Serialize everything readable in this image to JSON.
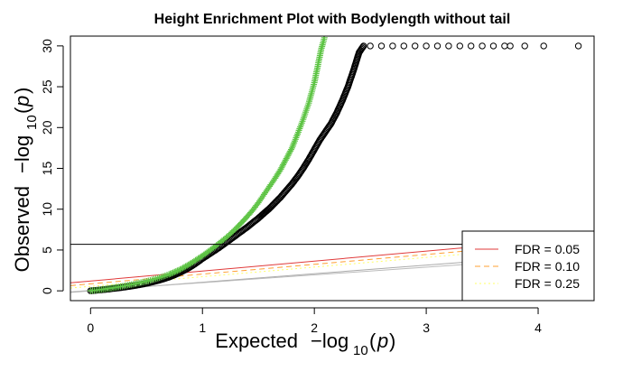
{
  "chart_data": {
    "type": "scatter",
    "title": "Height Enrichment Plot with Bodylength without tail",
    "xlabel": {
      "prefix": "Expected",
      "expr": "−log",
      "sub": "10",
      "arg": "p"
    },
    "ylabel": {
      "prefix": "Observed",
      "expr": "−log",
      "sub": "10",
      "arg": "p"
    },
    "xlim": [
      -0.18,
      4.5
    ],
    "ylim": [
      -1.2,
      31.2
    ],
    "x_ticks": [
      0,
      1,
      2,
      3,
      4
    ],
    "y_ticks": [
      0,
      5,
      10,
      15,
      20,
      25,
      30
    ],
    "x_tick_labels": [
      "0",
      "1",
      "2",
      "3",
      "4"
    ],
    "y_tick_labels": [
      "0",
      "5",
      "10",
      "15",
      "20",
      "25",
      "30"
    ],
    "threshold_line": {
      "y": 5.7,
      "color": "#000000"
    },
    "series": [
      {
        "marker": "circle",
        "color": "#000000",
        "points": [
          [
            0,
            0
          ],
          [
            0.05,
            0.06
          ],
          [
            0.1,
            0.13
          ],
          [
            0.15,
            0.2
          ],
          [
            0.2,
            0.28
          ],
          [
            0.25,
            0.36
          ],
          [
            0.3,
            0.45
          ],
          [
            0.35,
            0.55
          ],
          [
            0.4,
            0.66
          ],
          [
            0.45,
            0.78
          ],
          [
            0.5,
            0.92
          ],
          [
            0.55,
            1.08
          ],
          [
            0.6,
            1.25
          ],
          [
            0.65,
            1.45
          ],
          [
            0.7,
            1.68
          ],
          [
            0.75,
            1.95
          ],
          [
            0.8,
            2.25
          ],
          [
            0.85,
            2.6
          ],
          [
            0.9,
            3.0
          ],
          [
            0.95,
            3.45
          ],
          [
            1.0,
            3.95
          ],
          [
            1.05,
            4.4
          ],
          [
            1.1,
            4.85
          ],
          [
            1.15,
            5.3
          ],
          [
            1.2,
            5.8
          ],
          [
            1.25,
            6.3
          ],
          [
            1.3,
            6.8
          ],
          [
            1.35,
            7.3
          ],
          [
            1.4,
            7.8
          ],
          [
            1.45,
            8.35
          ],
          [
            1.5,
            8.9
          ],
          [
            1.55,
            9.5
          ],
          [
            1.6,
            10.1
          ],
          [
            1.65,
            10.8
          ],
          [
            1.7,
            11.5
          ],
          [
            1.75,
            12.3
          ],
          [
            1.8,
            13.1
          ],
          [
            1.85,
            14.0
          ],
          [
            1.9,
            15.0
          ],
          [
            1.95,
            16.1
          ],
          [
            2.0,
            17.3
          ],
          [
            2.05,
            18.5
          ],
          [
            2.1,
            19.5
          ],
          [
            2.15,
            20.5
          ],
          [
            2.2,
            21.8
          ],
          [
            2.25,
            23.3
          ],
          [
            2.3,
            25.0
          ],
          [
            2.35,
            27.0
          ],
          [
            2.4,
            29.2
          ],
          [
            2.44,
            30.0
          ],
          [
            2.5,
            30.0
          ],
          [
            2.6,
            30.0
          ],
          [
            2.7,
            30.0
          ],
          [
            2.8,
            30.0
          ],
          [
            2.9,
            30.0
          ],
          [
            3.0,
            30.0
          ],
          [
            3.1,
            30.0
          ],
          [
            3.2,
            30.0
          ],
          [
            3.3,
            30.0
          ],
          [
            3.4,
            30.0
          ],
          [
            3.5,
            30.0
          ],
          [
            3.6,
            30.0
          ],
          [
            3.7,
            30.0
          ],
          [
            3.75,
            30.0
          ],
          [
            3.88,
            30.0
          ],
          [
            4.05,
            30.0
          ],
          [
            4.36,
            30.0
          ]
        ]
      },
      {
        "marker": "plus",
        "color": "#5ec445",
        "points": [
          [
            0,
            0
          ],
          [
            0.05,
            0.08
          ],
          [
            0.1,
            0.17
          ],
          [
            0.15,
            0.27
          ],
          [
            0.2,
            0.37
          ],
          [
            0.25,
            0.48
          ],
          [
            0.3,
            0.6
          ],
          [
            0.35,
            0.73
          ],
          [
            0.4,
            0.87
          ],
          [
            0.45,
            1.02
          ],
          [
            0.5,
            1.18
          ],
          [
            0.55,
            1.35
          ],
          [
            0.6,
            1.55
          ],
          [
            0.65,
            1.77
          ],
          [
            0.7,
            2.02
          ],
          [
            0.75,
            2.3
          ],
          [
            0.8,
            2.62
          ],
          [
            0.85,
            3.0
          ],
          [
            0.9,
            3.4
          ],
          [
            0.95,
            3.85
          ],
          [
            1.0,
            4.3
          ],
          [
            1.05,
            4.8
          ],
          [
            1.1,
            5.3
          ],
          [
            1.15,
            5.85
          ],
          [
            1.2,
            6.4
          ],
          [
            1.25,
            7.0
          ],
          [
            1.3,
            7.65
          ],
          [
            1.35,
            8.35
          ],
          [
            1.4,
            9.1
          ],
          [
            1.45,
            9.9
          ],
          [
            1.5,
            10.8
          ],
          [
            1.55,
            11.8
          ],
          [
            1.6,
            12.8
          ],
          [
            1.65,
            13.8
          ],
          [
            1.7,
            14.9
          ],
          [
            1.75,
            16.2
          ],
          [
            1.8,
            17.5
          ],
          [
            1.85,
            19.2
          ],
          [
            1.9,
            21.0
          ],
          [
            1.95,
            23.0
          ],
          [
            2.0,
            25.5
          ],
          [
            2.03,
            27.5
          ],
          [
            2.06,
            29.5
          ],
          [
            2.09,
            31.0
          ]
        ]
      }
    ],
    "fdr_lines": [
      {
        "name": "FDR = 0.05",
        "color": "#e03a3a",
        "dash": "",
        "y0": 1.2,
        "slope": 1.22
      },
      {
        "name": "FDR = 0.10",
        "color": "#ffa033",
        "dash": "6,4",
        "y0": 0.85,
        "slope": 1.2
      },
      {
        "name": "FDR = 0.25",
        "color": "#ffff66",
        "dash": "2,3",
        "y0": 0.55,
        "slope": 1.18
      }
    ],
    "reference_lines": [
      {
        "color": "#aaaaaa",
        "slope": 1.05,
        "y0": 0.0
      },
      {
        "color": "#bbbbbb",
        "slope": 0.95,
        "y0": 0.05
      }
    ],
    "legend": {
      "position": "bottom-right",
      "entries": [
        "FDR = 0.05",
        "FDR = 0.10",
        "FDR = 0.25"
      ]
    }
  }
}
